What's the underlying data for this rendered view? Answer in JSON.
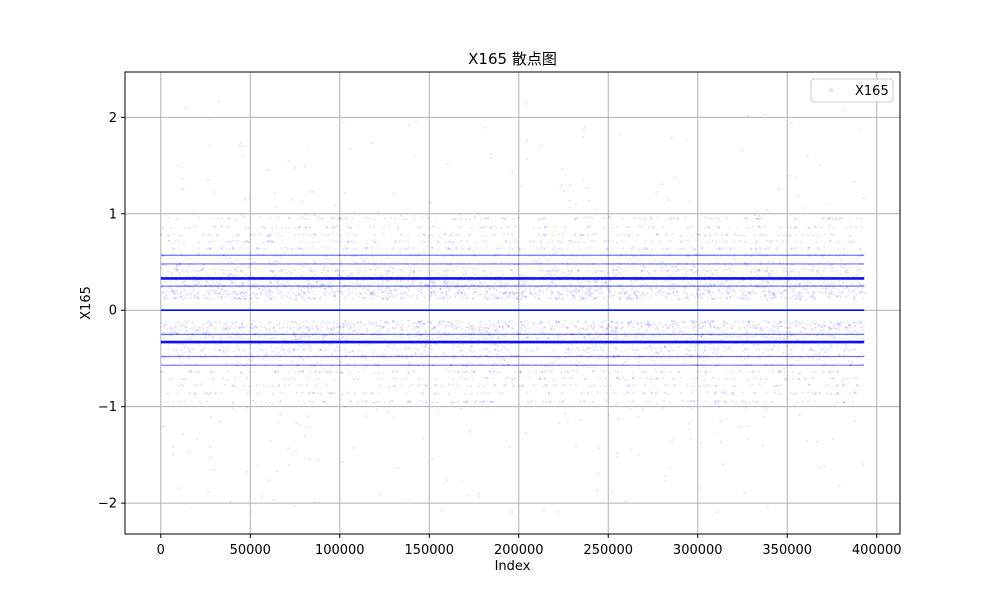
{
  "chart_data": {
    "type": "scatter",
    "title": "X165 散点图",
    "xlabel": "Index",
    "ylabel": "X165",
    "xlim": [
      -20000,
      413000
    ],
    "ylim": [
      -2.32,
      2.47
    ],
    "xticks": [
      0,
      50000,
      100000,
      150000,
      200000,
      250000,
      300000,
      350000,
      400000
    ],
    "xtick_labels": [
      "0",
      "50000",
      "100000",
      "150000",
      "200000",
      "250000",
      "300000",
      "350000",
      "400000"
    ],
    "yticks": [
      -2,
      -1,
      0,
      1,
      2
    ],
    "ytick_labels": [
      "−2",
      "−1",
      "0",
      "1",
      "2"
    ],
    "grid": true,
    "legend": {
      "position": "top-right",
      "entries": [
        "X165"
      ]
    },
    "series": [
      {
        "name": "X165",
        "color": "#0000ff",
        "marker_alpha": 0.1,
        "x_range": [
          0,
          393000
        ],
        "dense_levels": [
          -0.33,
          0,
          0.33
        ],
        "secondary_levels": [
          -0.48,
          -0.57,
          -0.25,
          0.25,
          0.48,
          0.57
        ],
        "core_band": [
          [
            -0.95,
            -0.12
          ],
          [
            0.12,
            0.95
          ]
        ],
        "outlier_extent": [
          -2.1,
          2.2
        ]
      }
    ]
  }
}
